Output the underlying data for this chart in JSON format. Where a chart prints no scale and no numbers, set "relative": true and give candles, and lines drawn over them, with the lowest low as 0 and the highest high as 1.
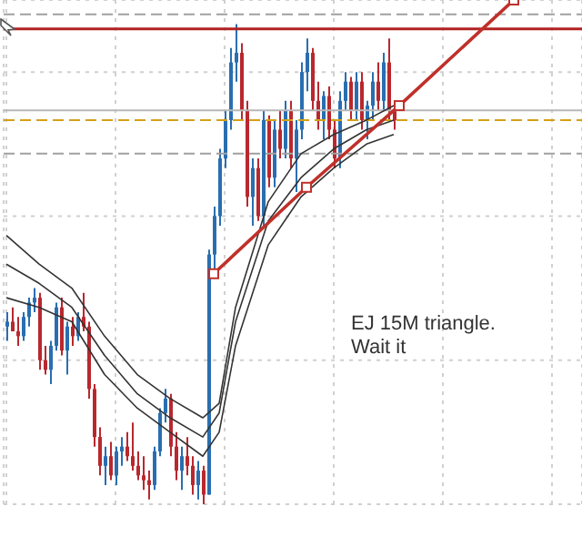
{
  "chart_data": {
    "type": "candlestick",
    "relative": true,
    "tick_labels": false,
    "grid": true,
    "categories": [
      null,
      null,
      null,
      null,
      null,
      null,
      null,
      null,
      null,
      null,
      null,
      null,
      null,
      null,
      null,
      null,
      null,
      null,
      null,
      null,
      null,
      null,
      null,
      null,
      null,
      null,
      null,
      null,
      null,
      null,
      null,
      null,
      null,
      null,
      null,
      null,
      null,
      null,
      null,
      null,
      null,
      null,
      null,
      null,
      null,
      null,
      null,
      null,
      null,
      null,
      null,
      null,
      null,
      null,
      null,
      null,
      null,
      null,
      null,
      null,
      null,
      null,
      null,
      null,
      null,
      null,
      null,
      null,
      null,
      null,
      null,
      null,
      null,
      null,
      null,
      null,
      null,
      null,
      null,
      null,
      null,
      null,
      null,
      null,
      null,
      null,
      null,
      null,
      null,
      null,
      null,
      null,
      null,
      null,
      null,
      null,
      null,
      null,
      null,
      null,
      null,
      null,
      null,
      null,
      null,
      null
    ],
    "ohlc": [
      [
        0.37,
        0.4,
        0.34,
        0.38
      ],
      [
        0.38,
        0.41,
        0.36,
        0.36
      ],
      [
        0.36,
        0.39,
        0.33,
        0.35
      ],
      [
        0.35,
        0.4,
        0.34,
        0.39
      ],
      [
        0.39,
        0.43,
        0.37,
        0.42
      ],
      [
        0.42,
        0.45,
        0.4,
        0.43
      ],
      [
        0.43,
        0.44,
        0.28,
        0.3
      ],
      [
        0.3,
        0.33,
        0.27,
        0.28
      ],
      [
        0.28,
        0.34,
        0.25,
        0.33
      ],
      [
        0.33,
        0.42,
        0.32,
        0.41
      ],
      [
        0.41,
        0.43,
        0.31,
        0.32
      ],
      [
        0.32,
        0.38,
        0.27,
        0.37
      ],
      [
        0.37,
        0.39,
        0.33,
        0.35
      ],
      [
        0.35,
        0.4,
        0.34,
        0.39
      ],
      [
        0.39,
        0.44,
        0.36,
        0.37
      ],
      [
        0.37,
        0.38,
        0.22,
        0.24
      ],
      [
        0.24,
        0.25,
        0.12,
        0.14
      ],
      [
        0.14,
        0.16,
        0.06,
        0.08
      ],
      [
        0.08,
        0.12,
        0.04,
        0.1
      ],
      [
        0.1,
        0.13,
        0.05,
        0.06
      ],
      [
        0.06,
        0.12,
        0.04,
        0.11
      ],
      [
        0.11,
        0.14,
        0.08,
        0.12
      ],
      [
        0.12,
        0.15,
        0.09,
        0.1
      ],
      [
        0.1,
        0.17,
        0.07,
        0.08
      ],
      [
        0.08,
        0.11,
        0.05,
        0.06
      ],
      [
        0.06,
        0.1,
        0.03,
        0.05
      ],
      [
        0.05,
        0.07,
        0.01,
        0.04
      ],
      [
        0.04,
        0.12,
        0.03,
        0.11
      ],
      [
        0.11,
        0.2,
        0.1,
        0.19
      ],
      [
        0.19,
        0.24,
        0.17,
        0.22
      ],
      [
        0.22,
        0.23,
        0.1,
        0.12
      ],
      [
        0.12,
        0.15,
        0.05,
        0.07
      ],
      [
        0.07,
        0.12,
        0.03,
        0.1
      ],
      [
        0.1,
        0.14,
        0.06,
        0.08
      ],
      [
        0.08,
        0.1,
        0.02,
        0.04
      ],
      [
        0.04,
        0.09,
        0.01,
        0.07
      ],
      [
        0.07,
        0.08,
        0.0,
        0.02
      ],
      [
        0.02,
        0.53,
        0.02,
        0.52
      ],
      [
        0.52,
        0.62,
        0.48,
        0.6
      ],
      [
        0.6,
        0.74,
        0.58,
        0.72
      ],
      [
        0.72,
        0.82,
        0.7,
        0.8
      ],
      [
        0.8,
        0.95,
        0.78,
        0.92
      ],
      [
        0.92,
        1.0,
        0.88,
        0.94
      ],
      [
        0.94,
        0.96,
        0.8,
        0.82
      ],
      [
        0.82,
        0.84,
        0.62,
        0.64
      ],
      [
        0.64,
        0.72,
        0.58,
        0.7
      ],
      [
        0.7,
        0.72,
        0.59,
        0.6
      ],
      [
        0.6,
        0.82,
        0.58,
        0.8
      ],
      [
        0.8,
        0.81,
        0.66,
        0.68
      ],
      [
        0.68,
        0.8,
        0.66,
        0.78
      ],
      [
        0.78,
        0.82,
        0.72,
        0.74
      ],
      [
        0.74,
        0.84,
        0.72,
        0.82
      ],
      [
        0.82,
        0.84,
        0.7,
        0.72
      ],
      [
        0.72,
        0.8,
        0.65,
        0.78
      ],
      [
        0.78,
        0.92,
        0.76,
        0.9
      ],
      [
        0.9,
        0.97,
        0.86,
        0.94
      ],
      [
        0.94,
        0.95,
        0.82,
        0.84
      ],
      [
        0.84,
        0.88,
        0.78,
        0.8
      ],
      [
        0.8,
        0.86,
        0.76,
        0.85
      ],
      [
        0.85,
        0.87,
        0.76,
        0.78
      ],
      [
        0.78,
        0.8,
        0.7,
        0.72
      ],
      [
        0.72,
        0.86,
        0.7,
        0.84
      ],
      [
        0.84,
        0.9,
        0.82,
        0.88
      ],
      [
        0.88,
        0.89,
        0.8,
        0.82
      ],
      [
        0.82,
        0.9,
        0.8,
        0.88
      ],
      [
        0.88,
        0.9,
        0.78,
        0.8
      ],
      [
        0.8,
        0.84,
        0.76,
        0.83
      ],
      [
        0.83,
        0.9,
        0.8,
        0.88
      ],
      [
        0.88,
        0.92,
        0.82,
        0.84
      ],
      [
        0.84,
        0.94,
        0.82,
        0.92
      ],
      [
        0.92,
        0.97,
        0.8,
        0.82
      ],
      [
        0.82,
        0.84,
        0.78,
        0.8
      ],
      null,
      null,
      null,
      null,
      null,
      null,
      null,
      null,
      null,
      null,
      null,
      null,
      null,
      null,
      null,
      null,
      null,
      null,
      null,
      null,
      null,
      null,
      null,
      null,
      null,
      null,
      null,
      null,
      null,
      null,
      null,
      null,
      null,
      null
    ],
    "colors": [
      "#2a6eb0",
      "#b8282e",
      "#b8282e",
      "#2a6eb0",
      "#2a6eb0",
      "#2a6eb0",
      "#b8282e",
      "#b8282e",
      "#2a6eb0",
      "#2a6eb0",
      "#b8282e",
      "#2a6eb0",
      "#b8282e",
      "#2a6eb0",
      "#b8282e",
      "#b8282e",
      "#b8282e",
      "#b8282e",
      "#2a6eb0",
      "#b8282e",
      "#2a6eb0",
      "#2a6eb0",
      "#b8282e",
      "#b8282e",
      "#b8282e",
      "#b8282e",
      "#b8282e",
      "#2a6eb0",
      "#2a6eb0",
      "#2a6eb0",
      "#b8282e",
      "#b8282e",
      "#2a6eb0",
      "#b8282e",
      "#b8282e",
      "#2a6eb0",
      "#b8282e",
      "#2a6eb0",
      "#2a6eb0",
      "#2a6eb0",
      "#2a6eb0",
      "#2a6eb0",
      "#2a6eb0",
      "#b8282e",
      "#b8282e",
      "#2a6eb0",
      "#b8282e",
      "#2a6eb0",
      "#b8282e",
      "#2a6eb0",
      "#b8282e",
      "#2a6eb0",
      "#b8282e",
      "#2a6eb0",
      "#2a6eb0",
      "#2a6eb0",
      "#b8282e",
      "#b8282e",
      "#2a6eb0",
      "#b8282e",
      "#b8282e",
      "#2a6eb0",
      "#2a6eb0",
      "#b8282e",
      "#2a6eb0",
      "#b8282e",
      "#2a6eb0",
      "#2a6eb0",
      "#b8282e",
      "#2a6eb0",
      "#b8282e",
      "#b8282e",
      null,
      null,
      null,
      null,
      null,
      null,
      null,
      null,
      null,
      null,
      null,
      null,
      null,
      null,
      null,
      null,
      null,
      null,
      null,
      null,
      null,
      null,
      null,
      null,
      null,
      null,
      null,
      null,
      null,
      null,
      null,
      null,
      null,
      null
    ],
    "series": [
      {
        "type": "line",
        "color": "#333333",
        "values": [
          0.56,
          null,
          null,
          null,
          null,
          null,
          0.5,
          null,
          null,
          null,
          null,
          null,
          0.45,
          null,
          null,
          null,
          null,
          null,
          0.35,
          null,
          null,
          null,
          null,
          null,
          0.27,
          null,
          null,
          null,
          null,
          null,
          0.22,
          null,
          null,
          null,
          null,
          null,
          0.18,
          null,
          null,
          0.21,
          null,
          null,
          0.41,
          null,
          null,
          null,
          null,
          null,
          0.63,
          null,
          null,
          null,
          null,
          null,
          0.73,
          null,
          null,
          null,
          null,
          null,
          0.77,
          null,
          null,
          null,
          null,
          null,
          0.8,
          null,
          null,
          null,
          null,
          0.83,
          null,
          null,
          null,
          null,
          null,
          null,
          null,
          null,
          null,
          null,
          null,
          null,
          null,
          null,
          null,
          null,
          null,
          null,
          null,
          null,
          null,
          null,
          null,
          null,
          null,
          null,
          null,
          null,
          null,
          null,
          null,
          null,
          null,
          null
        ]
      },
      {
        "type": "line",
        "color": "#333333",
        "values": [
          0.5,
          null,
          null,
          null,
          null,
          null,
          0.46,
          null,
          null,
          null,
          null,
          null,
          0.41,
          null,
          null,
          null,
          null,
          null,
          0.31,
          null,
          null,
          null,
          null,
          null,
          0.23,
          null,
          null,
          null,
          null,
          null,
          0.18,
          null,
          null,
          null,
          null,
          null,
          0.14,
          null,
          null,
          0.19,
          null,
          null,
          0.38,
          null,
          null,
          null,
          null,
          null,
          0.59,
          null,
          null,
          null,
          null,
          null,
          0.68,
          null,
          null,
          null,
          null,
          null,
          0.74,
          null,
          null,
          null,
          null,
          null,
          0.78,
          null,
          null,
          null,
          null,
          0.8,
          null,
          null,
          null,
          null,
          null,
          null,
          null,
          null,
          null,
          null,
          null,
          null,
          null,
          null,
          null,
          null,
          null,
          null,
          null,
          null,
          null,
          null,
          null,
          null,
          null,
          null,
          null,
          null,
          null,
          null,
          null,
          null,
          null,
          null
        ]
      },
      {
        "type": "line",
        "color": "#333333",
        "values": [
          0.43,
          null,
          null,
          null,
          null,
          null,
          0.41,
          null,
          null,
          null,
          null,
          null,
          0.38,
          null,
          null,
          null,
          null,
          null,
          0.27,
          null,
          null,
          null,
          null,
          null,
          0.2,
          null,
          null,
          null,
          null,
          null,
          0.15,
          null,
          null,
          null,
          null,
          null,
          0.1,
          null,
          null,
          0.15,
          null,
          null,
          0.33,
          null,
          null,
          null,
          null,
          null,
          0.54,
          null,
          null,
          null,
          null,
          null,
          0.64,
          null,
          null,
          null,
          null,
          null,
          0.7,
          null,
          null,
          null,
          null,
          null,
          0.75,
          null,
          null,
          null,
          null,
          0.77,
          null,
          null,
          null,
          null,
          null,
          null,
          null,
          null,
          null,
          null,
          null,
          null,
          null,
          null,
          null,
          null,
          null,
          null,
          null,
          null,
          null,
          null,
          null,
          null,
          null,
          null,
          null,
          null,
          null,
          null,
          null,
          null,
          null,
          null
        ]
      },
      {
        "type": "line",
        "color": "#c0302a",
        "marker": "square",
        "values": [
          null,
          null,
          null,
          null,
          null,
          null,
          null,
          null,
          null,
          null,
          null,
          null,
          null,
          null,
          null,
          null,
          null,
          null,
          null,
          null,
          null,
          null,
          null,
          null,
          null,
          null,
          null,
          null,
          null,
          null,
          null,
          null,
          null,
          null,
          null,
          null,
          null,
          null,
          0.48,
          null,
          null,
          null,
          null,
          null,
          null,
          null,
          null,
          null,
          null,
          null,
          null,
          null,
          null,
          null,
          null,
          0.66,
          null,
          null,
          null,
          null,
          null,
          null,
          null,
          null,
          null,
          null,
          null,
          null,
          null,
          null,
          null,
          null,
          0.83,
          null,
          null,
          null,
          null,
          null,
          null,
          null,
          null,
          null,
          null,
          null,
          null,
          null,
          null,
          null,
          null,
          null,
          null,
          null,
          null,
          1.05,
          null,
          null,
          null,
          null,
          null,
          null,
          null,
          null,
          null,
          null,
          null,
          null
        ]
      }
    ],
    "ref_lines": [
      {
        "axis": "y",
        "value": 0.99,
        "color": "#b22222",
        "line_style": "solid"
      },
      {
        "axis": "y",
        "value": 1.02,
        "color": "#a0a0a0",
        "line_style": "dashed"
      },
      {
        "axis": "y",
        "value": 0.82,
        "color": "#b8b8b8",
        "line_style": "solid"
      },
      {
        "axis": "y",
        "value": 0.8,
        "color": "#d4a017",
        "line_style": "dashed"
      },
      {
        "axis": "y",
        "value": 0.73,
        "color": "#a0a0a0",
        "line_style": "dashed"
      }
    ],
    "annotations": [
      "EJ 15M triangle.\nWait it"
    ]
  }
}
